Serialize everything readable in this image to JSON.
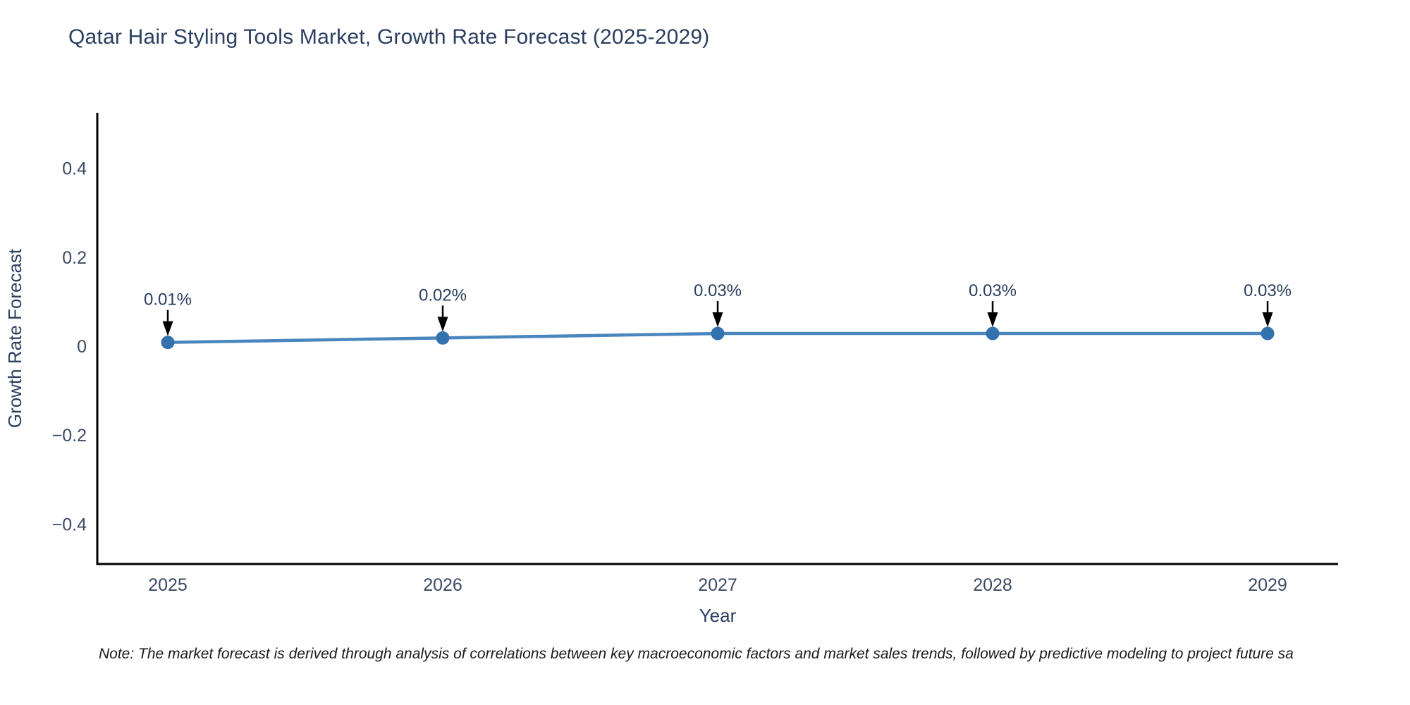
{
  "chart_data": {
    "type": "line",
    "title": "Qatar Hair Styling Tools Market, Growth Rate Forecast (2025-2029)",
    "xlabel": "Year",
    "ylabel": "Growth Rate Forecast",
    "x": [
      "2025",
      "2026",
      "2027",
      "2028",
      "2029"
    ],
    "series": [
      {
        "name": "Growth Rate Forecast",
        "values": [
          0.01,
          0.02,
          0.03,
          0.03,
          0.03
        ]
      }
    ],
    "point_labels": [
      "0.01%",
      "0.02%",
      "0.03%",
      "0.03%",
      "0.03%"
    ],
    "yticks": [
      0.4,
      0.2,
      0,
      -0.2,
      -0.4
    ],
    "ylim": [
      -0.488,
      0.526
    ],
    "grid": false,
    "legend": false,
    "colors": {
      "line": "#4a86be",
      "marker": "#3472ae",
      "axis": "#000000",
      "title_text": "#2a3f5f",
      "tick_text": "#3b4a63",
      "annotation_text": "#2a3f5f",
      "arrow": "#000000"
    }
  },
  "note": {
    "text": "Note: The market forecast is derived through analysis of correlations between key macroeconomic factors and market sales trends, followed by predictive modeling to project future sa"
  }
}
